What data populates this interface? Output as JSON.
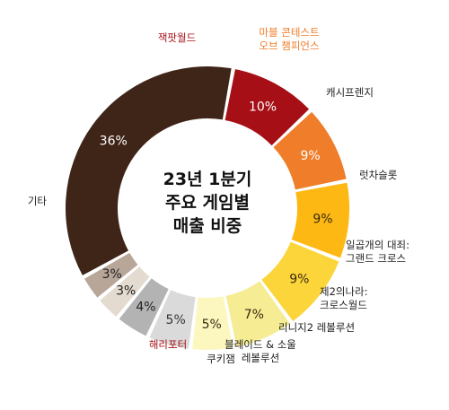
{
  "chart_data": {
    "type": "pie",
    "title_lines": [
      "23년 1분기",
      "주요 게임별",
      "매출 비중"
    ],
    "unit": "%",
    "slices": [
      {
        "label": "잭팟월드",
        "value": 10,
        "display": "10%",
        "color": "#a50f15",
        "label_color": "#a50f15",
        "value_color": "#ffffff"
      },
      {
        "label": "마블 콘테스트\n오브 챔피언스",
        "value": 9,
        "display": "9%",
        "color": "#ef7d2a",
        "label_color": "#ef7d2a",
        "value_color": "#ffffff"
      },
      {
        "label": "캐시프렌지",
        "value": 9,
        "display": "9%",
        "color": "#fdb813",
        "label_color": "#222222",
        "value_color": "#3a2a10"
      },
      {
        "label": "럿차슬롯",
        "value": 9,
        "display": "9%",
        "color": "#fcd53a",
        "label_color": "#222222",
        "value_color": "#3a2a10"
      },
      {
        "label": "일곱개의 대죄:\n그랜드 크로스",
        "value": 7,
        "display": "7%",
        "color": "#f5ec94",
        "label_color": "#222222",
        "value_color": "#3a2a10"
      },
      {
        "label": "제2의나라:\n크로스월드",
        "value": 5,
        "display": "5%",
        "color": "#fbf7bf",
        "label_color": "#222222",
        "value_color": "#3a2a10"
      },
      {
        "label": "리니지2 레볼루션",
        "value": 5,
        "display": "5%",
        "color": "#dadada",
        "label_color": "#222222",
        "value_color": "#333333"
      },
      {
        "label": "블레이드 & 소울\n레볼루션",
        "value": 4,
        "display": "4%",
        "color": "#b3b3b3",
        "label_color": "#222222",
        "value_color": "#222222"
      },
      {
        "label": "쿠키잼",
        "value": 3,
        "display": "3%",
        "color": "#e4dbd0",
        "label_color": "#222222",
        "value_color": "#222222"
      },
      {
        "label": "해리포터",
        "value": 3,
        "display": "3%",
        "color": "#b8a698",
        "label_color": "#a50f15",
        "value_color": "#222222"
      },
      {
        "label": "기타",
        "value": 36,
        "display": "36%",
        "color": "#3f2418",
        "label_color": "#222222",
        "value_color": "#ffffff"
      }
    ]
  }
}
